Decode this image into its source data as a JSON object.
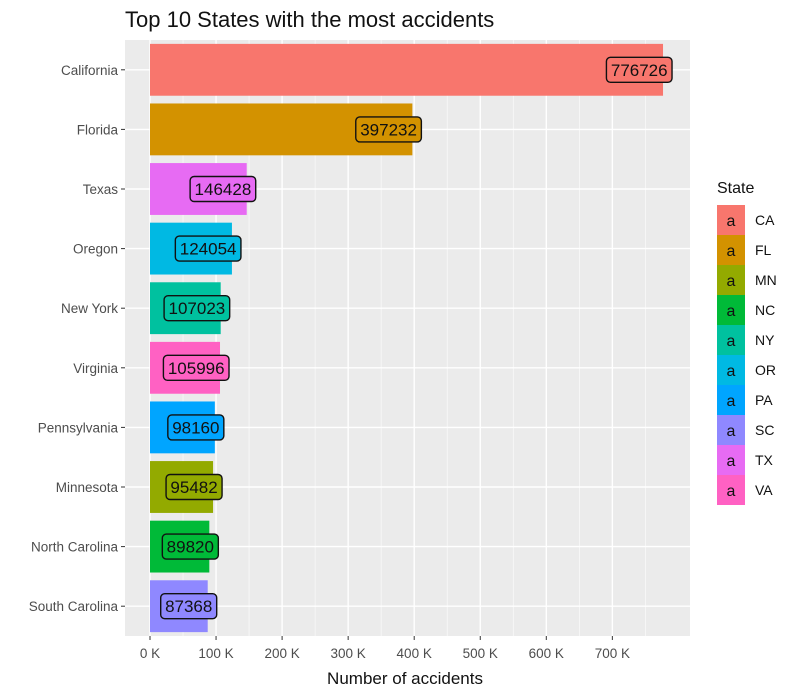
{
  "chart_data": {
    "type": "bar",
    "orientation": "horizontal",
    "title": "Top 10 States with the most accidents",
    "xlabel": "Number of accidents",
    "ylabel": "",
    "categories": [
      "California",
      "Florida",
      "Texas",
      "Oregon",
      "New York",
      "Virginia",
      "Pennsylvania",
      "Minnesota",
      "North Carolina",
      "South Carolina"
    ],
    "values": [
      776726,
      397232,
      146428,
      124054,
      107023,
      105996,
      98160,
      95482,
      89820,
      87368
    ],
    "state_codes": [
      "CA",
      "FL",
      "TX",
      "OR",
      "NY",
      "VA",
      "PA",
      "MN",
      "NC",
      "SC"
    ],
    "data_labels": [
      "776726",
      "397232",
      "146428",
      "124054",
      "107023",
      "105996",
      "98160",
      "95482",
      "89820",
      "87368"
    ],
    "xlim": [
      0,
      780000
    ],
    "x_ticks": [
      0,
      100000,
      200000,
      300000,
      400000,
      500000,
      600000,
      700000
    ],
    "x_tick_labels": [
      "0 K",
      "100 K",
      "200 K",
      "300 K",
      "400 K",
      "500 K",
      "600 K",
      "700 K"
    ],
    "grid": true,
    "legend": {
      "title": "State",
      "placement": "right",
      "key_glyph": "a",
      "entries": [
        {
          "label": "CA",
          "color": "#F8766D"
        },
        {
          "label": "FL",
          "color": "#D39200"
        },
        {
          "label": "MN",
          "color": "#93AA00"
        },
        {
          "label": "NC",
          "color": "#00BA38"
        },
        {
          "label": "NY",
          "color": "#00C19F"
        },
        {
          "label": "OR",
          "color": "#00B9E3"
        },
        {
          "label": "PA",
          "color": "#00A5FF"
        },
        {
          "label": "SC",
          "color": "#8F88FF"
        },
        {
          "label": "TX",
          "color": "#E76BF3"
        },
        {
          "label": "VA",
          "color": "#FF61C3"
        }
      ]
    },
    "colors": {
      "panel_background": "#EBEBEB",
      "grid_major": "#FFFFFF"
    }
  }
}
